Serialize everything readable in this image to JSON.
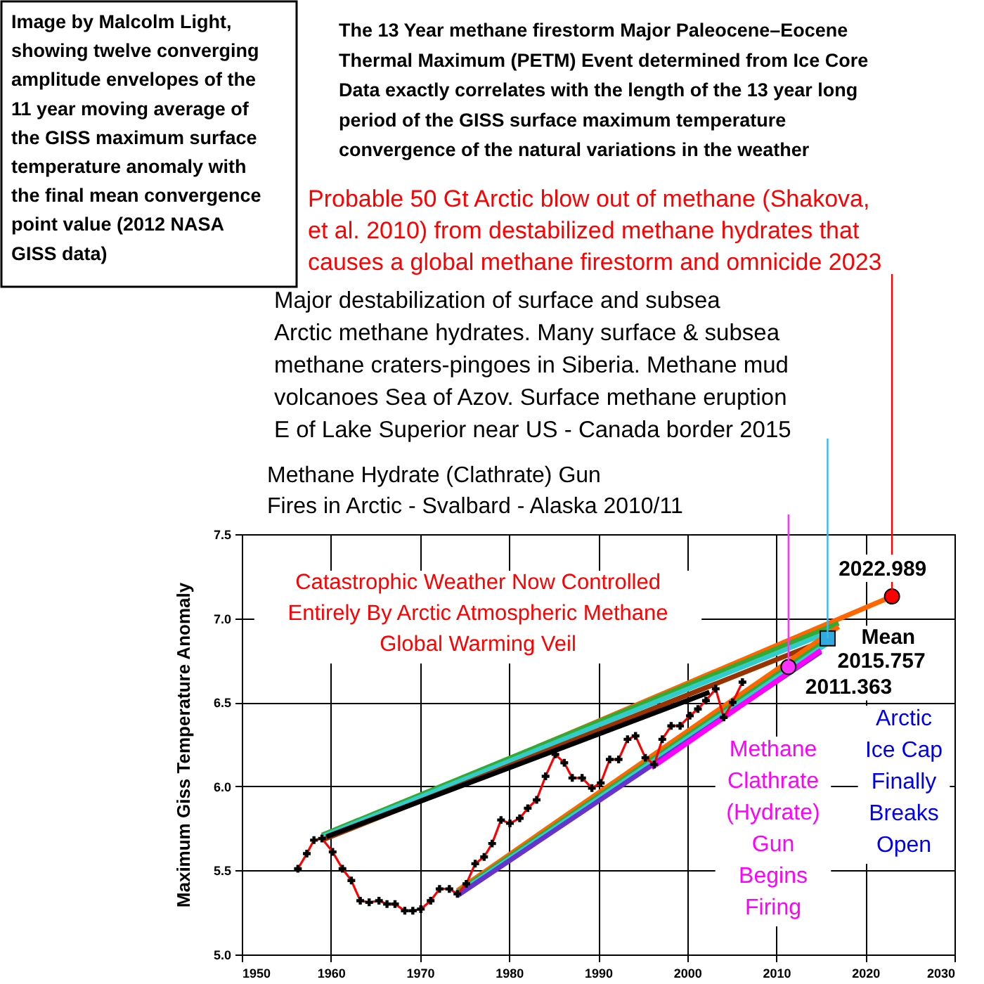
{
  "chart_data": {
    "type": "line",
    "title": "The 13 Year methane firestorm Major Paleocene–Eocene\nThermal Maximum (PETM) Event determined from Ice Core\nData exactly correlates with the length of the 13 year long\nperiod of the GISS surface maximum temperature\nconvergence of the natural variations in the weather",
    "ylabel": "Maximum Giss Temperature Anomaly",
    "xlim": [
      1950,
      2030
    ],
    "xticks": [
      1950,
      1960,
      1970,
      1980,
      1990,
      2000,
      2010,
      2020,
      2030
    ],
    "ylim": [
      5,
      7.5
    ],
    "yticks": [
      {
        "value": 5,
        "label": "5.0"
      },
      {
        "value": 5.5,
        "label": "5.5"
      },
      {
        "value": 6,
        "label": "6.0"
      },
      {
        "value": 6.5,
        "label": "6.5"
      },
      {
        "value": 7,
        "label": "7.0"
      },
      {
        "value": 7.5,
        "label": "7.5"
      }
    ],
    "grid": true,
    "series": [
      {
        "color": "#ff6600",
        "x": [
          1959,
          2022.989
        ],
        "values": [
          5.69,
          7.13
        ]
      },
      {
        "color": "#33aa33",
        "x": [
          1959,
          2017
        ],
        "values": [
          5.71,
          6.97
        ]
      },
      {
        "color": "#33cccc",
        "x": [
          1959,
          2016
        ],
        "values": [
          5.7,
          6.92
        ]
      },
      {
        "color": "#993300",
        "x": [
          1959,
          2016
        ],
        "values": [
          5.68,
          6.88
        ]
      },
      {
        "color": "#000000",
        "x": [
          1959.5,
          2002.5
        ],
        "values": [
          5.7,
          6.56
        ]
      },
      {
        "color": "#ff6600",
        "x": [
          1974.2,
          2017
        ],
        "values": [
          5.38,
          6.95
        ]
      },
      {
        "color": "#33aa33",
        "x": [
          1974.2,
          2016
        ],
        "values": [
          5.37,
          6.88
        ]
      },
      {
        "color": "#33cccc",
        "x": [
          1974.2,
          2016
        ],
        "values": [
          5.36,
          6.86
        ]
      },
      {
        "color": "#6633cc",
        "x": [
          1974.2,
          2015
        ],
        "values": [
          5.35,
          6.8
        ]
      },
      {
        "color": "#ff00ff",
        "x": [
          1996,
          2015
        ],
        "values": [
          6.11,
          6.81
        ]
      },
      {
        "color": "#ff0000",
        "marker": "cross",
        "x": [
          1956.3,
          1957.3,
          1958.1,
          1959,
          1960.2,
          1961.3,
          1962.3,
          1963.3,
          1964.3,
          1965.4,
          1966.3,
          1967.2,
          1968.3,
          1969.2,
          1970.1,
          1971.2,
          1972.2,
          1973.3,
          1974.2,
          1975.2,
          1976.2,
          1977.2,
          1978.1,
          1979.1,
          1980.1,
          1981.2,
          1982.1,
          1983.1,
          1984.1,
          1985.2,
          1986.2,
          1987.1,
          1988.2,
          1989.3,
          1990.3,
          1991.3,
          1992.3,
          1993.3,
          1994.2,
          1995.3,
          1996.3,
          1997.2,
          1998.2,
          1999.2,
          2000.3,
          2001.2,
          2002.1,
          2003.2,
          2004.1,
          2005.1,
          2006.2
        ],
        "values": [
          5.51,
          5.6,
          5.68,
          5.69,
          5.61,
          5.51,
          5.44,
          5.32,
          5.31,
          5.32,
          5.3,
          5.3,
          5.26,
          5.26,
          5.27,
          5.32,
          5.39,
          5.39,
          5.36,
          5.42,
          5.54,
          5.58,
          5.66,
          5.8,
          5.78,
          5.81,
          5.87,
          5.92,
          6.06,
          6.19,
          6.14,
          6.05,
          6.05,
          5.99,
          6.02,
          6.16,
          6.16,
          6.28,
          6.3,
          6.17,
          6.13,
          6.28,
          6.36,
          6.36,
          6.42,
          6.46,
          6.51,
          6.58,
          6.41,
          6.5,
          6.62
        ]
      },
      {
        "type": "scatter",
        "color": "#ff0000",
        "marker": "circle",
        "x": [
          2022.989
        ],
        "values": [
          7.13
        ]
      },
      {
        "type": "scatter",
        "color": "#33aadd",
        "marker": "square",
        "x": [
          2015.757
        ],
        "values": [
          6.88
        ]
      },
      {
        "type": "scatter",
        "color": "#ff33ff",
        "marker": "circle",
        "x": [
          2011.363
        ],
        "values": [
          6.71
        ]
      }
    ],
    "ref_lines": [
      {
        "axis": "x",
        "value": 2022.989,
        "color": "#ff0000"
      },
      {
        "axis": "x",
        "value": 2015.757,
        "color": "#33bbee"
      },
      {
        "axis": "x",
        "value": 2011.363,
        "color": "#ff33ff"
      }
    ],
    "annotations": [
      "Image by Malcolm Light,\nshowing twelve converging\namplitude envelopes of the\n11 year moving average of\nthe GISS maximum surface\ntemperature anomaly with\nthe final mean convergence\npoint value (2012 NASA\nGISS data)",
      "Probable 50 Gt Arctic blow out of methane (Shakova,\net al. 2010) from destabilized methane hydrates that\ncauses a global methane firestorm and omnicide  2023",
      "Major destabilization of surface and subsea\nArctic methane hydrates. Many surface  & subsea\nmethane craters-pingoes in Siberia. Methane mud\nvolcanoes Sea of Azov. Surface methane eruption\nE of Lake Superior near US - Canada border 2015",
      "Methane Hydrate (Clathrate) Gun\nFires in Arctic - Svalbard - Alaska 2010/11",
      "Catastrophic Weather Now Controlled\nEntirely By Arctic Atmospheric Methane\nGlobal Warming Veil",
      {
        "text": "2022.989",
        "x": 2022.989,
        "y": 7.13
      },
      {
        "text": "Mean\n2015.757",
        "x": 2015.757,
        "y": 6.88
      },
      {
        "text": "2011.363",
        "x": 2011.363,
        "y": 6.71
      },
      "Methane\nClathrate\n(Hydrate)\nGun\nBegins\nFiring",
      "Arctic\nIce Cap\nFinally\nBreaks\nOpen"
    ]
  }
}
